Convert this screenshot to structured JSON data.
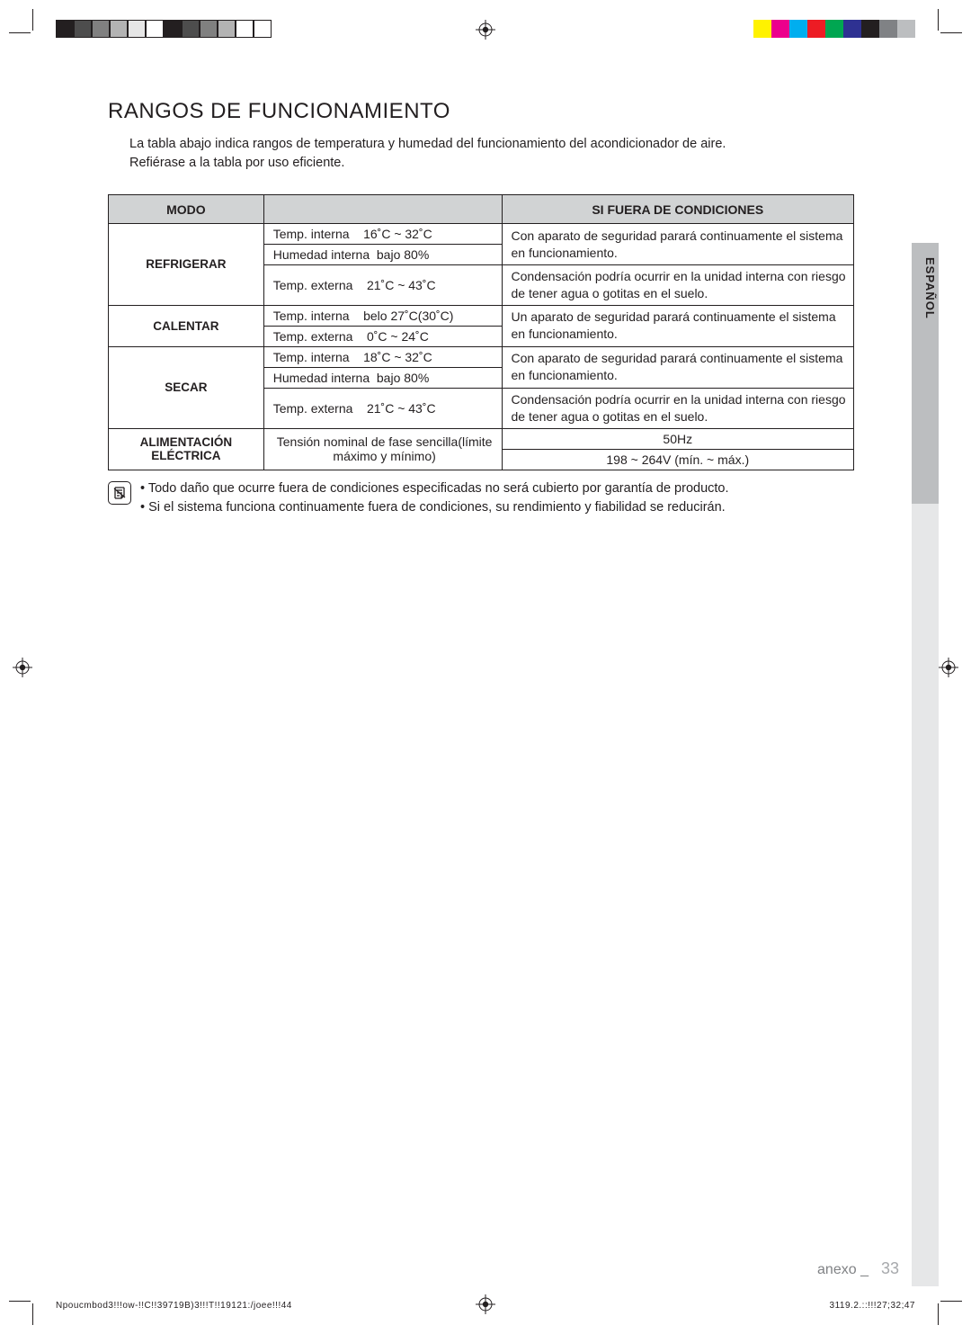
{
  "title": "RANGOS DE FUNCIONAMIENTO",
  "intro_l1": "La tabla abajo indica rangos de temperatura y humedad del funcionamiento del acondicionador de aire.",
  "intro_l2": "Refiérase a la tabla por uso eficiente.",
  "table": {
    "head_mode": "MODO",
    "head_cond": "",
    "head_remark": "SI FUERA DE CONDICIONES",
    "refrigerar": {
      "mode": "REFRIGERAR",
      "r1": "Temp. interna    16˚C ~ 32˚C",
      "r2": "Humedad interna  bajo 80%",
      "r3": "Temp. externa    21˚C ~ 43˚C",
      "rem1": "Con aparato de seguridad parará continuamente el sistema en funcionamiento.",
      "rem2": "Condensación podría ocurrir en la unidad interna con riesgo de tener agua o gotitas en el suelo."
    },
    "calentar": {
      "mode": "CALENTAR",
      "r1": "Temp. interna    belo 27˚C(30˚C)",
      "r2": "Temp. externa    0˚C ~ 24˚C",
      "rem": "Un aparato de seguridad parará continuamente el sistema en funcionamiento."
    },
    "secar": {
      "mode": "SECAR",
      "r1": "Temp. interna    18˚C ~ 32˚C",
      "r2": "Humedad interna  bajo 80%",
      "r3": "Temp. externa    21˚C ~ 43˚C",
      "rem1": "Con aparato de seguridad parará continuamente el sistema en funcionamiento.",
      "rem2": "Condensación podría ocurrir en la unidad interna con riesgo de tener agua o gotitas en el suelo."
    },
    "power": {
      "mode": "ALIMENTACIÓN ELÉCTRICA",
      "label": "Tensión nominal de fase sencilla(límite máximo y mínimo)",
      "hz": "50Hz",
      "range": "198 ~ 264V (mín. ~ máx.)"
    }
  },
  "note_l1": "• Todo daño que ocurre fuera de condiciones especificadas no será cubierto por garantía de producto.",
  "note_l2": "• Si el sistema funciona continuamente fuera de condiciones, su rendimiento y fiabilidad se reducirán.",
  "side_tab": "ESPAÑOL",
  "footer_label": "anexo _",
  "footer_page": "33",
  "slug_left": "Npoucmbod3!!!ow-!!C!!39719B)3!!!T!!19121:/joee!!!44",
  "slug_right": "3119.2.::!!!27;32;47",
  "colorbar_left": [
    "#231f20",
    "#4d4d4d",
    "#808080",
    "#b3b3b3",
    "#e6e6e6",
    "#ffffff",
    "#231f20",
    "#4d4d4d",
    "#808080",
    "#b3b3b3",
    "#ffffff",
    "#ffffff"
  ],
  "colorbar_right": [
    "#ffffff",
    "#fff200",
    "#ec008c",
    "#00aeef",
    "#ed1c24",
    "#00a651",
    "#2e3192",
    "#231f20",
    "#808285",
    "#bcbec0"
  ]
}
